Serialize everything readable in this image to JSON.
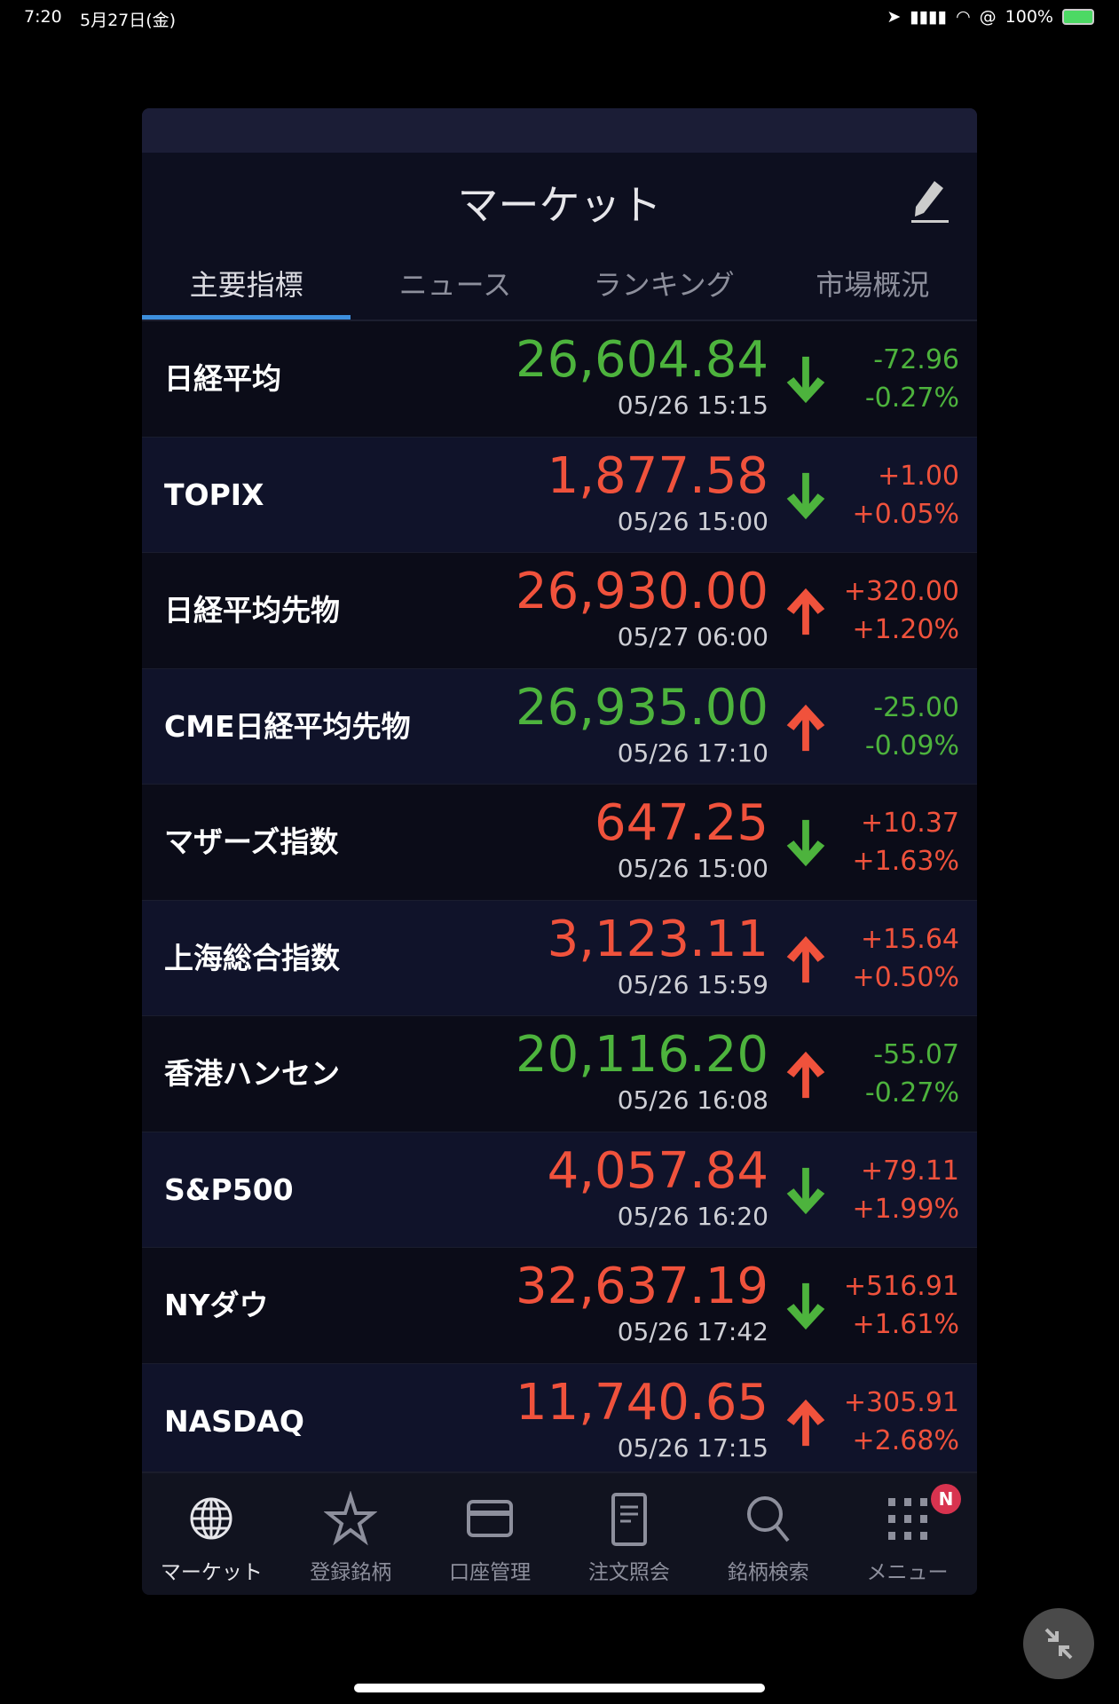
{
  "status_bar": {
    "time": "7:20",
    "date": "5月27日(金)",
    "battery": "100%"
  },
  "header": {
    "title": "マーケット"
  },
  "tabs": [
    {
      "label": "主要指標",
      "active": true
    },
    {
      "label": "ニュース"
    },
    {
      "label": "ランキング"
    },
    {
      "label": "市場概況"
    }
  ],
  "colors": {
    "up": "#f0523c",
    "down": "#4db33d",
    "tab_accent": "#3d8fdd",
    "badge": "#d8334f"
  },
  "rows": [
    {
      "name": "日経平均",
      "price": "26,604.84",
      "time": "05/26 15:15",
      "arrow": "down",
      "change": "-72.96",
      "pct": "-0.27%",
      "value_color": "down"
    },
    {
      "name": "TOPIX",
      "price": "1,877.58",
      "time": "05/26 15:00",
      "arrow": "down",
      "change": "+1.00",
      "pct": "+0.05%",
      "value_color": "up"
    },
    {
      "name": "日経平均先物",
      "price": "26,930.00",
      "time": "05/27 06:00",
      "arrow": "up",
      "change": "+320.00",
      "pct": "+1.20%",
      "value_color": "up"
    },
    {
      "name": "CME日経平均先物",
      "price": "26,935.00",
      "time": "05/26 17:10",
      "arrow": "up",
      "change": "-25.00",
      "pct": "-0.09%",
      "value_color": "down"
    },
    {
      "name": "マザーズ指数",
      "price": "647.25",
      "time": "05/26 15:00",
      "arrow": "down",
      "change": "+10.37",
      "pct": "+1.63%",
      "value_color": "up"
    },
    {
      "name": "上海総合指数",
      "price": "3,123.11",
      "time": "05/26 15:59",
      "arrow": "up",
      "change": "+15.64",
      "pct": "+0.50%",
      "value_color": "up"
    },
    {
      "name": "香港ハンセン",
      "price": "20,116.20",
      "time": "05/26 16:08",
      "arrow": "up",
      "change": "-55.07",
      "pct": "-0.27%",
      "value_color": "down"
    },
    {
      "name": "S&P500",
      "price": "4,057.84",
      "time": "05/26 16:20",
      "arrow": "down",
      "change": "+79.11",
      "pct": "+1.99%",
      "value_color": "up"
    },
    {
      "name": "NYダウ",
      "price": "32,637.19",
      "time": "05/26 17:42",
      "arrow": "down",
      "change": "+516.91",
      "pct": "+1.61%",
      "value_color": "up"
    },
    {
      "name": "NASDAQ",
      "price": "11,740.65",
      "time": "05/26 17:15",
      "arrow": "up",
      "change": "+305.91",
      "pct": "+2.68%",
      "value_color": "up"
    }
  ],
  "nav": [
    {
      "label": "マーケット",
      "icon": "globe-icon",
      "active": true
    },
    {
      "label": "登録銘柄",
      "icon": "star-icon"
    },
    {
      "label": "口座管理",
      "icon": "card-icon"
    },
    {
      "label": "注文照会",
      "icon": "document-icon"
    },
    {
      "label": "銘柄検索",
      "icon": "search-icon"
    },
    {
      "label": "メニュー",
      "icon": "grid-icon",
      "badge": "N"
    }
  ]
}
